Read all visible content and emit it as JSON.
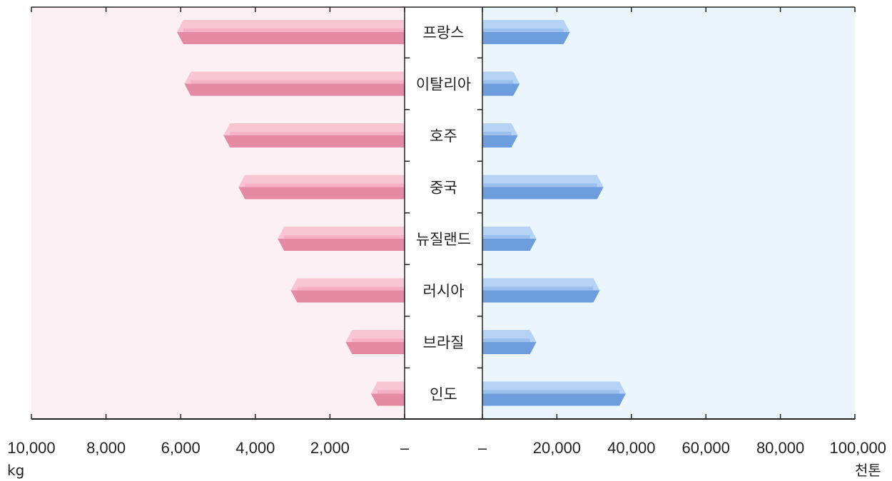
{
  "chart_data": {
    "type": "bar",
    "categories": [
      "프랑스",
      "이탈리아",
      "호주",
      "중국",
      "뉴질랜드",
      "러시아",
      "브라질",
      "인도"
    ],
    "series": [
      {
        "side": "left",
        "values": [
          6100,
          5900,
          4850,
          4450,
          3400,
          3050,
          1580,
          900
        ]
      },
      {
        "side": "right",
        "values": [
          23500,
          10000,
          9500,
          32500,
          14500,
          31500,
          14500,
          38500
        ]
      }
    ],
    "left_axis": {
      "ticks": [
        10000,
        8000,
        6000,
        4000,
        2000,
        0
      ],
      "tick_labels": [
        "10,000",
        "8,000",
        "6,000",
        "4,000",
        "2,000",
        "–"
      ],
      "unit": "kg",
      "range": [
        10000,
        0
      ]
    },
    "right_axis": {
      "ticks": [
        0,
        20000,
        40000,
        60000,
        80000,
        100000
      ],
      "tick_labels": [
        "–",
        "20,000",
        "40,000",
        "60,000",
        "80,000",
        "100,000"
      ],
      "unit": "천톤",
      "range": [
        0,
        100000
      ]
    },
    "colors": {
      "left_bar": "#f3a0b6",
      "left_bar_light": "#f8c6d3",
      "left_bar_dark": "#e48aa2",
      "left_bg": "#fdf0f5",
      "right_bar": "#86b2ea",
      "right_bar_light": "#b5d1f4",
      "right_bar_dark": "#6d9ddc",
      "right_bg": "#eaf6fb"
    }
  }
}
